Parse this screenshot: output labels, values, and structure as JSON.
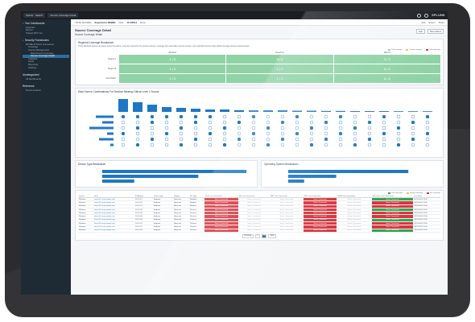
{
  "topbar": {
    "tabs": [
      "Splunk · Search",
      "Source Coverage Detail"
    ],
    "brand": "SPLUNK"
  },
  "sidebar": {
    "sections": [
      {
        "head": "Your Dashboards",
        "items": [
          "Favorites",
          "Recent",
          "Shared With You"
        ]
      },
      {
        "head": "Security Frameworks",
        "items": [
          "MITRE ATT&CK Framework",
          "Coverage",
          "Source Management",
          "Data Source Coverage",
          "Source Coverage Detail",
          "Analytics",
          "Alerts",
          "Reporting",
          "Settings"
        ]
      },
      {
        "head": "Uncategorized",
        "items": [
          "All Dashboards"
        ]
      },
      {
        "head": "Reference",
        "items": [
          "Documentation"
        ]
      }
    ]
  },
  "crumbbar": {
    "items": [
      "< RISK SCORES",
      "Exported to DEBEE",
      "Date",
      "1h 0/0014",
      "More"
    ],
    "right": [
      "Edit",
      "Export",
      "Share"
    ]
  },
  "page": {
    "title": "Source Coverage Detail",
    "subtitle": "Source Coverage Detail",
    "actions": [
      "Edit",
      "Show Filters"
    ]
  },
  "regional": {
    "title": "Regional Coverage Breakdown",
    "description": "Of the Windows devices we detect across all regions, most are covered by the primary sources; coverage from secondary sources is lower. Linux and Mac devices show partial coverage across several sources.",
    "legend": [
      "Full coverage",
      "Partial coverage",
      "Coverage gap"
    ],
    "columns": [
      "Windows",
      "Linux/Unix",
      "MacOS"
    ],
    "rows": [
      {
        "label": "Region A",
        "cells": [
          "4 | 5",
          "8 | 8",
          "9 | 9"
        ]
      },
      {
        "label": "Region B",
        "cells": [
          "1 | 3",
          "1 | 2",
          "6 | 6"
        ]
      },
      {
        "label": "Asia Pacific",
        "cells": [
          "3 | 3",
          "1 | 3",
          "8 | 8"
        ]
      }
    ]
  },
  "sources_chart": {
    "title": "Data Source Combinations For Devices Missing Critical Level 1 Source"
  },
  "small_charts": [
    {
      "title": "Device Type Breakdown"
    },
    {
      "title": "Operating System Breakdown"
    }
  ],
  "table": {
    "legend": [
      "Full Coverage",
      "Partial Coverage",
      "No Coverage"
    ],
    "headers": [
      "Device",
      "Host",
      "IP Address",
      "Device Type",
      "Region",
      "OS Type",
      "EDR Last Connection",
      "AV Last Connection",
      "NAC Last Connection",
      "DLP Last Connection",
      "SIEM Last Connection",
      "Vuln Scan Last Connection",
      "Last Seen"
    ],
    "rows": [
      [
        "Windows",
        "wkstn-01.corp.example.com",
        "10.0.1.12",
        "Endpoint",
        "Americas",
        "Windows",
        "Never Connected",
        "Never Connected",
        "Never Connected",
        "Never Connected",
        "Never Connected",
        "Never Connected",
        "2021-03-04 12:00"
      ],
      [
        "Windows",
        "wkstn-02.corp.example.com",
        "10.0.1.18",
        "Endpoint",
        "Americas",
        "Windows",
        "Never Connected",
        "Never Connected",
        "Never Connected",
        "Never Connected",
        "Never Connected",
        "Never Connected",
        "2021-03-04 12:00"
      ],
      [
        "Windows",
        "wkstn-03.corp.example.com",
        "10.0.1.21",
        "Endpoint",
        "Americas",
        "Windows",
        "Never Connected",
        "Never Connected",
        "Never Connected",
        "Never Connected",
        "Never Connected",
        "Never Connected",
        "2021-03-04 12:00"
      ],
      [
        "Windows",
        "wkstn-04.corp.example.com",
        "10.0.1.26",
        "Endpoint",
        "Americas",
        "Windows",
        "Never Connected",
        "Never Connected",
        "Never Connected",
        "Never Connected",
        "Never Connected",
        "Never Connected",
        "2021-03-04 12:00"
      ],
      [
        "Windows",
        "wkstn-05.corp.example.com",
        "10.0.1.33",
        "Endpoint",
        "Americas",
        "Windows",
        "Never Connected",
        "Never Connected",
        "Never Connected",
        "Never Connected",
        "Never Connected",
        "Never Connected",
        "2021-03-04 12:00"
      ],
      [
        "Windows",
        "wkstn-06.corp.example.com",
        "10.0.1.40",
        "Endpoint",
        "Americas",
        "Windows",
        "Never Connected",
        "Never Connected",
        "Never Connected",
        "Never Connected",
        "Never Connected",
        "Never Connected",
        "2021-03-04 12:00"
      ],
      [
        "Windows",
        "wkstn-07.corp.example.com",
        "10.0.1.44",
        "Endpoint",
        "Americas",
        "Windows",
        "Never Connected",
        "Never Connected",
        "Never Connected",
        "Never Connected",
        "Never Connected",
        "Never Connected",
        "2021-03-04 12:00"
      ],
      [
        "Windows",
        "wkstn-08.corp.example.com",
        "10.0.1.51",
        "Endpoint",
        "Americas",
        "Windows",
        "Never Connected",
        "Never Connected",
        "Never Connected",
        "Never Connected",
        "Never Connected",
        "Never Connected",
        "2021-03-04 12:00"
      ],
      [
        "Windows",
        "wkstn-09.corp.example.com",
        "10.0.1.57",
        "Endpoint",
        "Americas",
        "Windows",
        "Never Connected",
        "Never Connected",
        "Never Connected",
        "Never Connected",
        "Never Connected",
        "Never Connected",
        "2021-03-04 12:00"
      ],
      [
        "Windows",
        "wkstn-10.corp.example.com",
        "10.0.1.63",
        "Endpoint",
        "Americas",
        "Windows",
        "Never Connected",
        "Never Connected",
        "Never Connected",
        "Never Connected",
        "Never Connected",
        "Never Connected",
        "2021-03-04 12:00"
      ]
    ],
    "pager": [
      "Previous",
      "1",
      "2",
      "Next"
    ]
  },
  "colors": {
    "coverage_green": "#8fd3a6",
    "bar_blue": "#1f77c4",
    "no_coverage_red": "#d9363e",
    "full_green": "#2fa84f"
  }
}
